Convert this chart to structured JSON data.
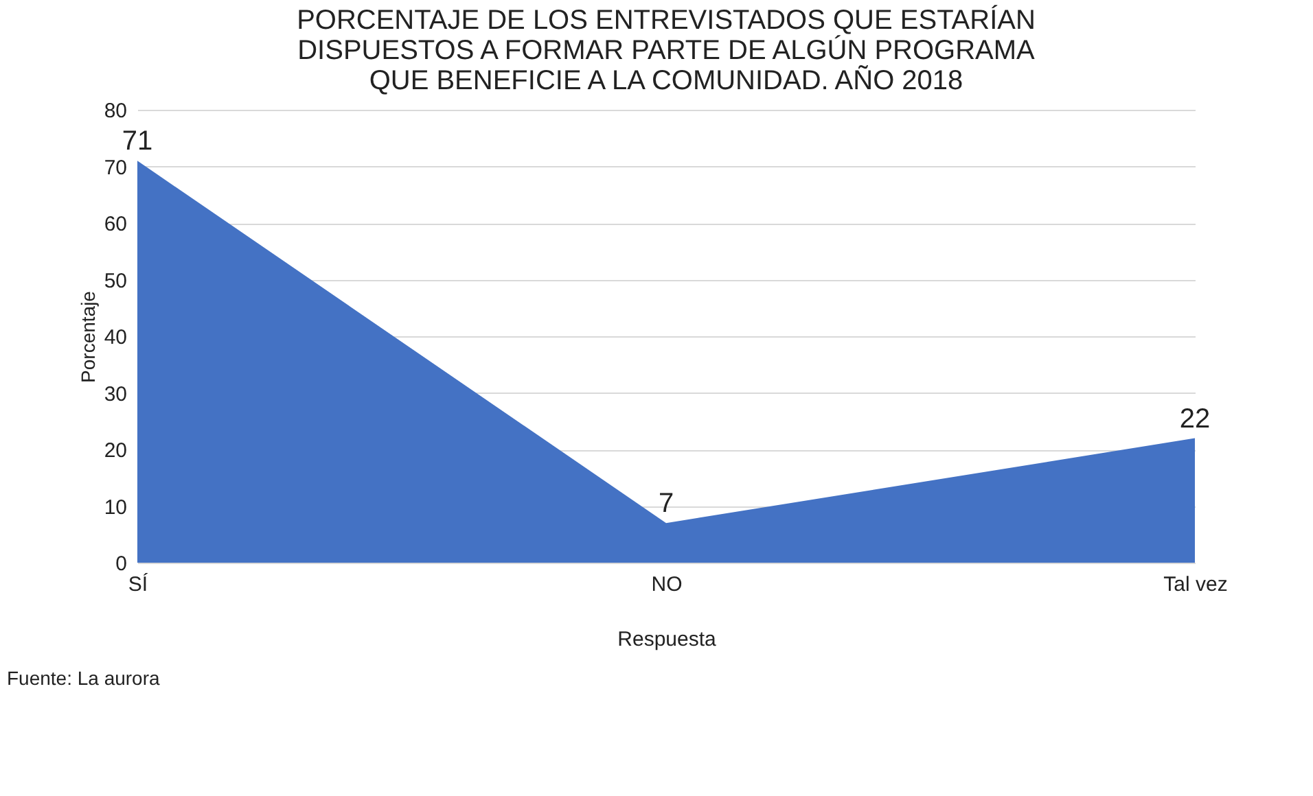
{
  "chart_data": {
    "type": "area",
    "title": "PORCENTAJE DE LOS ENTREVISTADOS QUE ESTARÍAN\nDISPUESTOS A FORMAR PARTE DE ALGÚN PROGRAMA\nQUE BENEFICIE A LA COMUNIDAD.  AÑO 2018",
    "xlabel": "Respuesta",
    "ylabel": "Porcentaje",
    "categories": [
      "SÍ",
      "NO",
      "Tal vez"
    ],
    "series": [
      {
        "color": "#4472c4",
        "values": [
          71,
          7,
          22
        ]
      }
    ],
    "ylim": [
      0,
      80
    ],
    "yticks": [
      0,
      10,
      20,
      30,
      40,
      50,
      60,
      70,
      80
    ],
    "grid": "y",
    "data_labels": true,
    "annotations": [
      "Fuente: La aurora"
    ]
  }
}
